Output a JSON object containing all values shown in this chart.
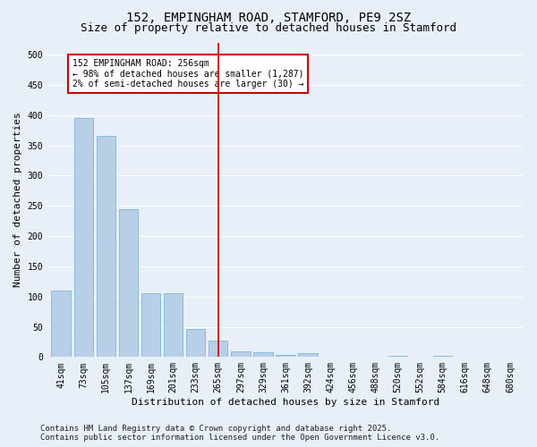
{
  "title1": "152, EMPINGHAM ROAD, STAMFORD, PE9 2SZ",
  "title2": "Size of property relative to detached houses in Stamford",
  "xlabel": "Distribution of detached houses by size in Stamford",
  "ylabel": "Number of detached properties",
  "categories": [
    "41sqm",
    "73sqm",
    "105sqm",
    "137sqm",
    "169sqm",
    "201sqm",
    "233sqm",
    "265sqm",
    "297sqm",
    "329sqm",
    "361sqm",
    "392sqm",
    "424sqm",
    "456sqm",
    "488sqm",
    "520sqm",
    "552sqm",
    "584sqm",
    "616sqm",
    "648sqm",
    "680sqm"
  ],
  "values": [
    110,
    395,
    365,
    245,
    105,
    105,
    47,
    27,
    10,
    8,
    4,
    7,
    1,
    0,
    0,
    2,
    0,
    2,
    0,
    1,
    0
  ],
  "bar_color": "#b8cfe8",
  "bar_edge_color": "#6baed6",
  "bg_color": "#e8eff8",
  "grid_color": "#ffffff",
  "vline_x_index": 7,
  "vline_color": "#cc0000",
  "annotation_text": "152 EMPINGHAM ROAD: 256sqm\n← 98% of detached houses are smaller (1,287)\n2% of semi-detached houses are larger (30) →",
  "annotation_box_color": "#ffffff",
  "annotation_box_edge": "#cc0000",
  "footer1": "Contains HM Land Registry data © Crown copyright and database right 2025.",
  "footer2": "Contains public sector information licensed under the Open Government Licence v3.0.",
  "ylim": [
    0,
    520
  ],
  "yticks": [
    0,
    50,
    100,
    150,
    200,
    250,
    300,
    350,
    400,
    450,
    500
  ],
  "title_fontsize": 10,
  "subtitle_fontsize": 9,
  "axis_label_fontsize": 8,
  "tick_fontsize": 7,
  "annotation_fontsize": 7,
  "footer_fontsize": 6.5
}
